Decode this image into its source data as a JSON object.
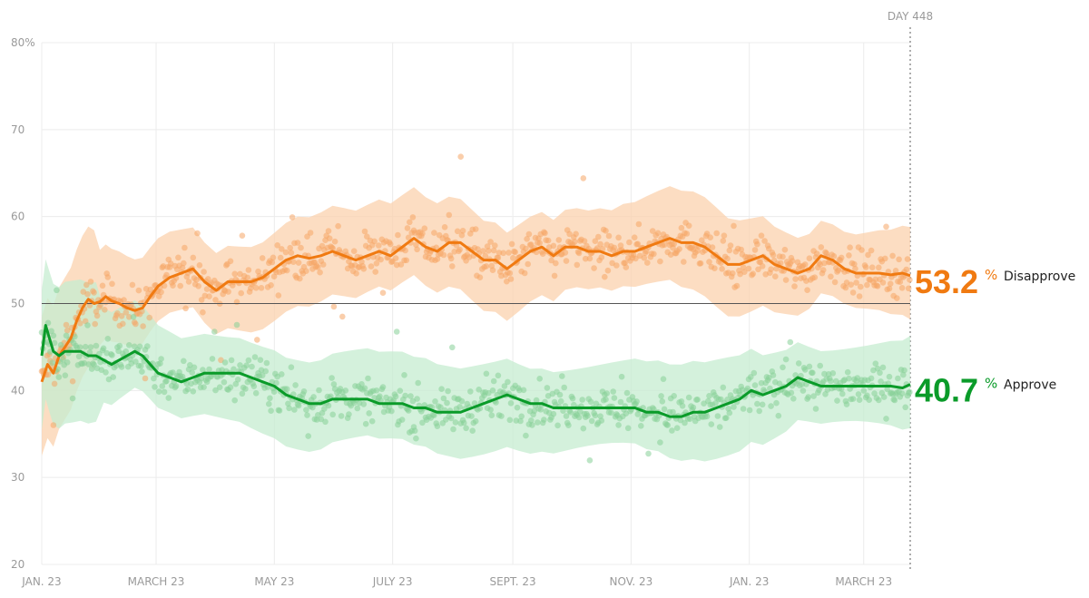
{
  "chart_data": {
    "type": "line",
    "title": "",
    "day_label": "DAY 448",
    "y_axis": {
      "min": 20,
      "max": 80,
      "ticks": [
        {
          "value": 80,
          "label": "80%"
        },
        {
          "value": 70,
          "label": "70"
        },
        {
          "value": 60,
          "label": "60"
        },
        {
          "value": 50,
          "label": "50"
        },
        {
          "value": 40,
          "label": "40"
        },
        {
          "value": 30,
          "label": "30"
        },
        {
          "value": 20,
          "label": "20"
        }
      ]
    },
    "x_axis": {
      "min": 0,
      "max": 448,
      "ticks": [
        {
          "day": 0,
          "label": "JAN. 23"
        },
        {
          "day": 59,
          "label": "MARCH 23"
        },
        {
          "day": 120,
          "label": "MAY 23"
        },
        {
          "day": 181,
          "label": "JULY 23"
        },
        {
          "day": 243,
          "label": "SEPT. 23"
        },
        {
          "day": 304,
          "label": "NOV. 23"
        },
        {
          "day": 365,
          "label": "JAN. 23"
        },
        {
          "day": 424,
          "label": "MARCH 23"
        }
      ]
    },
    "reference_line": 50,
    "series": [
      {
        "name": "Disapprove",
        "final_value": "53.2",
        "pct_symbol": "%",
        "color": "#f07a11",
        "band_color": "#fbd2ad",
        "dot_color": "#f6a566",
        "points": [
          [
            0,
            41
          ],
          [
            3,
            43
          ],
          [
            6,
            42
          ],
          [
            9,
            44
          ],
          [
            12,
            45
          ],
          [
            15,
            46
          ],
          [
            18,
            48
          ],
          [
            21,
            49.5
          ],
          [
            24,
            50.5
          ],
          [
            27,
            50
          ],
          [
            30,
            50.2
          ],
          [
            33,
            50.8
          ],
          [
            36,
            50.3
          ],
          [
            40,
            50
          ],
          [
            44,
            49.5
          ],
          [
            48,
            49.2
          ],
          [
            52,
            49.5
          ],
          [
            56,
            50.8
          ],
          [
            60,
            52
          ],
          [
            66,
            53
          ],
          [
            72,
            53.5
          ],
          [
            78,
            54
          ],
          [
            84,
            52.5
          ],
          [
            90,
            51.5
          ],
          [
            96,
            52.5
          ],
          [
            102,
            52.5
          ],
          [
            108,
            52.5
          ],
          [
            114,
            53
          ],
          [
            120,
            54
          ],
          [
            126,
            55
          ],
          [
            132,
            55.5
          ],
          [
            138,
            55.2
          ],
          [
            144,
            55.5
          ],
          [
            150,
            56
          ],
          [
            156,
            55.5
          ],
          [
            162,
            55
          ],
          [
            168,
            55.5
          ],
          [
            174,
            56
          ],
          [
            180,
            55.5
          ],
          [
            186,
            56.5
          ],
          [
            192,
            57.5
          ],
          [
            198,
            56.5
          ],
          [
            204,
            56
          ],
          [
            210,
            57
          ],
          [
            216,
            57
          ],
          [
            222,
            56
          ],
          [
            228,
            55
          ],
          [
            234,
            55
          ],
          [
            240,
            54
          ],
          [
            246,
            55
          ],
          [
            252,
            56
          ],
          [
            258,
            56.5
          ],
          [
            264,
            55.5
          ],
          [
            270,
            56.5
          ],
          [
            276,
            56.5
          ],
          [
            282,
            56
          ],
          [
            288,
            56
          ],
          [
            294,
            55.5
          ],
          [
            300,
            56
          ],
          [
            306,
            56
          ],
          [
            312,
            56.5
          ],
          [
            318,
            57
          ],
          [
            324,
            57.5
          ],
          [
            330,
            57
          ],
          [
            336,
            57
          ],
          [
            342,
            56.5
          ],
          [
            348,
            55.5
          ],
          [
            354,
            54.5
          ],
          [
            360,
            54.5
          ],
          [
            366,
            55
          ],
          [
            372,
            55.5
          ],
          [
            378,
            54.5
          ],
          [
            384,
            54
          ],
          [
            390,
            53.5
          ],
          [
            396,
            54
          ],
          [
            402,
            55.5
          ],
          [
            408,
            55
          ],
          [
            414,
            54
          ],
          [
            420,
            53.5
          ],
          [
            426,
            53.5
          ],
          [
            432,
            53.5
          ],
          [
            438,
            53.3
          ],
          [
            444,
            53.5
          ],
          [
            448,
            53.2
          ]
        ],
        "band_width": 5
      },
      {
        "name": "Approve",
        "final_value": "40.7",
        "pct_symbol": "%",
        "color": "#0a9b29",
        "band_color": "#c6ecd0",
        "dot_color": "#86cf97",
        "points": [
          [
            0,
            44
          ],
          [
            2,
            47.5
          ],
          [
            4,
            46
          ],
          [
            6,
            44.5
          ],
          [
            9,
            44
          ],
          [
            12,
            44.5
          ],
          [
            16,
            44.5
          ],
          [
            20,
            44.5
          ],
          [
            24,
            44
          ],
          [
            28,
            44
          ],
          [
            32,
            43.5
          ],
          [
            36,
            43
          ],
          [
            40,
            43.5
          ],
          [
            44,
            44
          ],
          [
            48,
            44.5
          ],
          [
            52,
            44
          ],
          [
            56,
            43
          ],
          [
            60,
            42
          ],
          [
            66,
            41.5
          ],
          [
            72,
            41
          ],
          [
            78,
            41.5
          ],
          [
            84,
            42
          ],
          [
            90,
            42
          ],
          [
            96,
            42
          ],
          [
            102,
            42
          ],
          [
            108,
            41.5
          ],
          [
            114,
            41
          ],
          [
            120,
            40.5
          ],
          [
            126,
            39.5
          ],
          [
            132,
            39
          ],
          [
            138,
            38.5
          ],
          [
            144,
            38.5
          ],
          [
            150,
            39
          ],
          [
            156,
            39
          ],
          [
            162,
            39
          ],
          [
            168,
            39
          ],
          [
            174,
            38.5
          ],
          [
            180,
            38.5
          ],
          [
            186,
            38.5
          ],
          [
            192,
            38
          ],
          [
            198,
            38
          ],
          [
            204,
            37.5
          ],
          [
            210,
            37.5
          ],
          [
            216,
            37.5
          ],
          [
            222,
            38
          ],
          [
            228,
            38.5
          ],
          [
            234,
            39
          ],
          [
            240,
            39.5
          ],
          [
            246,
            39
          ],
          [
            252,
            38.5
          ],
          [
            258,
            38.5
          ],
          [
            264,
            38
          ],
          [
            270,
            38
          ],
          [
            276,
            38
          ],
          [
            282,
            38
          ],
          [
            288,
            38
          ],
          [
            294,
            38
          ],
          [
            300,
            38
          ],
          [
            306,
            38
          ],
          [
            312,
            37.5
          ],
          [
            318,
            37.5
          ],
          [
            324,
            37
          ],
          [
            330,
            37
          ],
          [
            336,
            37.5
          ],
          [
            342,
            37.5
          ],
          [
            348,
            38
          ],
          [
            354,
            38.5
          ],
          [
            360,
            39
          ],
          [
            366,
            40
          ],
          [
            372,
            39.5
          ],
          [
            378,
            40
          ],
          [
            384,
            40.5
          ],
          [
            390,
            41.5
          ],
          [
            396,
            41
          ],
          [
            402,
            40.5
          ],
          [
            408,
            40.5
          ],
          [
            414,
            40.5
          ],
          [
            420,
            40.5
          ],
          [
            426,
            40.5
          ],
          [
            432,
            40.5
          ],
          [
            438,
            40.5
          ],
          [
            444,
            40.3
          ],
          [
            448,
            40.7
          ]
        ],
        "band_width": 5
      }
    ]
  }
}
